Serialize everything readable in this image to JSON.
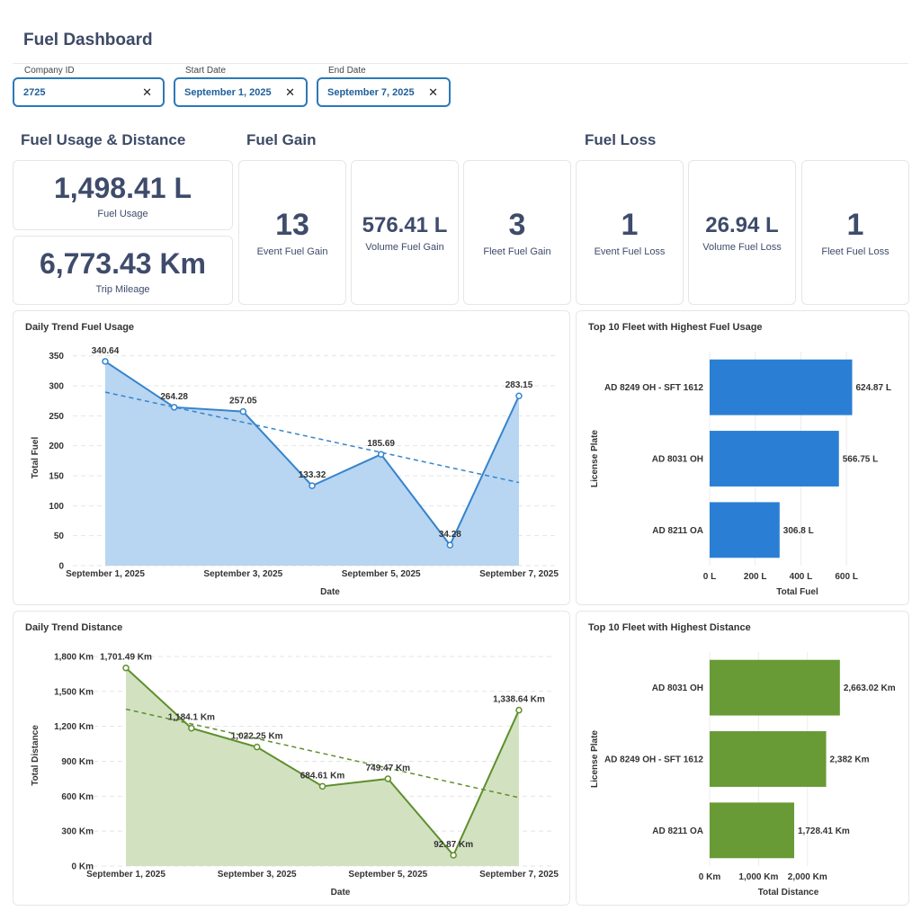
{
  "title": "Fuel Dashboard",
  "filters": [
    {
      "label": "Company ID",
      "value": "2725"
    },
    {
      "label": "Start Date",
      "value": "September 1, 2025"
    },
    {
      "label": "End Date",
      "value": "September 7, 2025"
    }
  ],
  "sections": [
    {
      "title": "Fuel Usage & Distance",
      "cards": [
        {
          "value": "1,498.41 L",
          "label": "Fuel Usage"
        },
        {
          "value": "6,773.43 Km",
          "label": "Trip Mileage"
        }
      ]
    },
    {
      "title": "Fuel Gain",
      "cards": [
        {
          "value": "13",
          "label": "Event Fuel Gain"
        },
        {
          "value": "576.41 L",
          "label": "Volume Fuel Gain"
        },
        {
          "value": "3",
          "label": "Fleet Fuel Gain"
        }
      ]
    },
    {
      "title": "Fuel Loss",
      "cards": [
        {
          "value": "1",
          "label": "Event Fuel Loss"
        },
        {
          "value": "26.94 L",
          "label": "Volume Fuel Loss"
        },
        {
          "value": "1",
          "label": "Fleet Fuel Loss"
        }
      ]
    }
  ],
  "chart_data": [
    {
      "type": "line",
      "title": "Daily Trend Fuel Usage",
      "categories": [
        "September 1, 2025",
        null,
        "September 3, 2025",
        null,
        "September 5, 2025",
        null,
        "September 7, 2025"
      ],
      "values": [
        340.64,
        264.28,
        257.05,
        133.32,
        185.69,
        34.28,
        283.15
      ],
      "color": "#3584cc",
      "fill": "#b8d5f1",
      "ylim": [
        0,
        360
      ],
      "yticks": [
        0,
        50,
        100,
        150,
        200,
        250,
        300,
        350
      ],
      "xlabel": "Date",
      "ylabel": "Total Fuel",
      "trendline": true,
      "grid": true
    },
    {
      "type": "line",
      "title": "Daily Trend Distance",
      "categories": [
        "September 1, 2025",
        null,
        "September 3, 2025",
        null,
        "September 5, 2025",
        null,
        "September 7, 2025"
      ],
      "values": [
        1701.49,
        1184.1,
        1022.25,
        684.61,
        749.47,
        92.87,
        1338.64
      ],
      "value_labels": [
        "1,701.49 Km",
        "1,184.1 Km",
        "1,022.25 Km",
        "684.61 Km",
        "749.47 Km",
        "92.87 Km",
        "1,338.64 Km"
      ],
      "color": "#5e8f2c",
      "fill": "#d2e2c1",
      "ylim": [
        0,
        1900
      ],
      "yticks": [
        {
          "value": 0,
          "label": "0 Km"
        },
        {
          "value": 300,
          "label": "300 Km"
        },
        {
          "value": 600,
          "label": "600 Km"
        },
        {
          "value": 900,
          "label": "900 Km"
        },
        {
          "value": 1200,
          "label": "1,200 Km"
        },
        {
          "value": 1500,
          "label": "1,500 Km"
        },
        {
          "value": 1800,
          "label": "1,800 Km"
        }
      ],
      "xlabel": "Date",
      "ylabel": "Total Distance",
      "trendline": true,
      "grid": true
    },
    {
      "type": "hbar",
      "title": "Top 10 Fleet with Highest Fuel Usage",
      "categories": [
        "AD 8249 OH - SFT 1612",
        "AD 8031 OH",
        "AD 8211 OA"
      ],
      "values": [
        624.87,
        566.75,
        306.8
      ],
      "value_labels": [
        "624.87 L",
        "566.75 L",
        "306.8 L"
      ],
      "color": "#2a7fd4",
      "xlim": [
        0,
        690
      ],
      "xticks": [
        {
          "value": 0,
          "label": "0 L"
        },
        {
          "value": 200,
          "label": "200 L"
        },
        {
          "value": 400,
          "label": "400 L"
        },
        {
          "value": 600,
          "label": "600 L"
        }
      ],
      "xlabel": "Total Fuel",
      "ylabel": "License Plate",
      "grid": true
    },
    {
      "type": "hbar",
      "title": "Top 10 Fleet with Highest Distance",
      "categories": [
        "AD 8031 OH",
        "AD 8249 OH - SFT 1612",
        "AD 8211 OA"
      ],
      "values": [
        2663.02,
        2382,
        1728.41
      ],
      "value_labels": [
        "2,663.02 Km",
        "2,382 Km",
        "1,728.41 Km"
      ],
      "color": "#689a35",
      "xlim": [
        0,
        2850
      ],
      "xticks": [
        {
          "value": 0,
          "label": "0 Km"
        },
        {
          "value": 1000,
          "label": "1,000 Km"
        },
        {
          "value": 2000,
          "label": "2,000 Km"
        }
      ],
      "xlabel": "Total Distance",
      "ylabel": "License Plate",
      "grid": true
    }
  ]
}
